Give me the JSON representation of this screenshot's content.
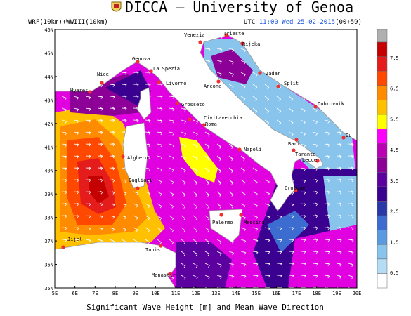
{
  "header": {
    "title": "DICCA – University of Genoa",
    "model": "WRF(10km)+WWIII(10km)",
    "utc_label": "UTC",
    "time": "11:00 Wed 25-02-2015",
    "lead": "(00+59)"
  },
  "map": {
    "lat_labels": [
      "46N",
      "45N",
      "44N",
      "43N",
      "42N",
      "41N",
      "40N",
      "39N",
      "38N",
      "37N",
      "36N",
      "35N"
    ],
    "lon_labels": [
      "5E",
      "6E",
      "7E",
      "8E",
      "9E",
      "10E",
      "11E",
      "12E",
      "13E",
      "14E",
      "15E",
      "16E",
      "17E",
      "18E",
      "19E",
      "20E"
    ],
    "cities": [
      "Venezia",
      "Trieste",
      "Rijeka",
      "Genova",
      "La Spezia",
      "Nice",
      "Hyeres",
      "Livorno",
      "Zadar",
      "Ancona",
      "Split",
      "Grosseto",
      "Dubrovnik",
      "Civitavecchia",
      "Roma",
      "Du",
      "Bari",
      "Napoli",
      "Alghero",
      "Taranto",
      "Lecce",
      "Cagliari",
      "Crotone",
      "Palermo",
      "Messina",
      "Jijel",
      "Tunis",
      "Monastir"
    ],
    "caption": "Significant Wave Height [m] and Mean Wave Direction"
  },
  "colorbar": {
    "labels": [
      0.5,
      1.5,
      2.5,
      3.5,
      4.5,
      5.5,
      6.5,
      7.5
    ],
    "range": [
      0,
      8
    ],
    "colors": [
      "#ffffff",
      "#b4dcf4",
      "#88c4ec",
      "#5a9ae0",
      "#3c6cd0",
      "#2838a8",
      "#3a0090",
      "#5c00a0",
      "#8c0098",
      "#bc00b4",
      "#ff00ff",
      "#ffff00",
      "#ffc000",
      "#ff8c00",
      "#ff4800",
      "#e41c1c",
      "#c40000"
    ]
  }
}
